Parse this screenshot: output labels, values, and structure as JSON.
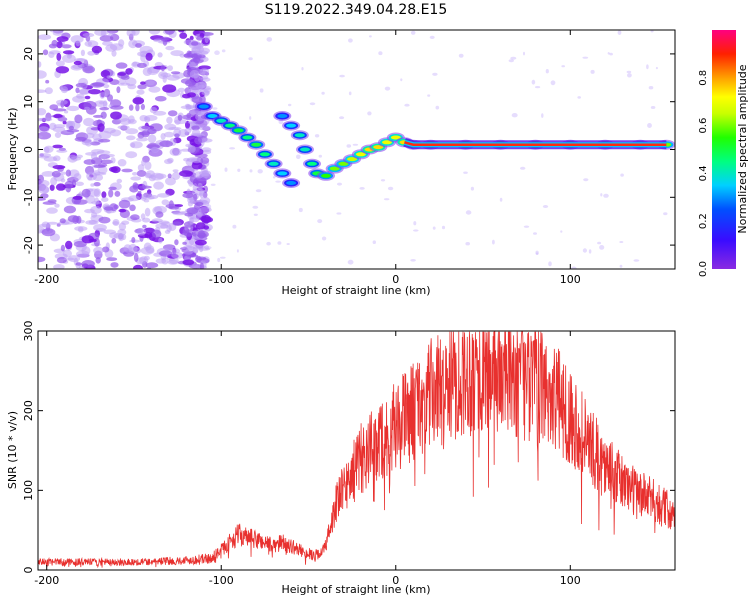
{
  "title": "S119.2022.349.04.28.E15",
  "chart_data": [
    {
      "type": "heatmap",
      "xlabel": "Height of straight line (km)",
      "ylabel": "Frequency (Hz)",
      "xlim": [
        -205,
        160
      ],
      "ylim": [
        -25,
        25
      ],
      "xticks": [
        -200,
        -100,
        0,
        100
      ],
      "yticks": [
        -20,
        -10,
        0,
        10,
        20
      ],
      "colorbar": {
        "label": "Normalized spectral amplitude",
        "range": [
          0,
          1
        ],
        "ticks": [
          "0.0",
          "0.2",
          "0.4",
          "0.6",
          "0.8"
        ],
        "colormap": "rainbow"
      },
      "features": {
        "noise_region_x": [
          -205,
          -108
        ],
        "line_segments": [
          {
            "x": -110,
            "y": 9,
            "amp": 0.3
          },
          {
            "x": -105,
            "y": 7,
            "amp": 0.35
          },
          {
            "x": -100,
            "y": 6,
            "amp": 0.4
          },
          {
            "x": -95,
            "y": 5,
            "amp": 0.45
          },
          {
            "x": -90,
            "y": 4,
            "amp": 0.5
          },
          {
            "x": -85,
            "y": 2.5,
            "amp": 0.45
          },
          {
            "x": -80,
            "y": 1,
            "amp": 0.5
          },
          {
            "x": -75,
            "y": -1,
            "amp": 0.45
          },
          {
            "x": -70,
            "y": -3,
            "amp": 0.4
          },
          {
            "x": -65,
            "y": -5,
            "amp": 0.35
          },
          {
            "x": -60,
            "y": -7,
            "amp": 0.3
          },
          {
            "x": -65,
            "y": 7,
            "amp": 0.3
          },
          {
            "x": -60,
            "y": 5,
            "amp": 0.35
          },
          {
            "x": -55,
            "y": 3,
            "amp": 0.4
          },
          {
            "x": -52,
            "y": 0,
            "amp": 0.4
          },
          {
            "x": -48,
            "y": -3,
            "amp": 0.45
          },
          {
            "x": -45,
            "y": -5,
            "amp": 0.5
          },
          {
            "x": -40,
            "y": -5.5,
            "amp": 0.55
          },
          {
            "x": -35,
            "y": -4,
            "amp": 0.6
          },
          {
            "x": -30,
            "y": -3,
            "amp": 0.6
          },
          {
            "x": -25,
            "y": -2,
            "amp": 0.65
          },
          {
            "x": -20,
            "y": -1,
            "amp": 0.7
          },
          {
            "x": -15,
            "y": 0,
            "amp": 0.75
          },
          {
            "x": -10,
            "y": 0.5,
            "amp": 0.75
          },
          {
            "x": -5,
            "y": 1.5,
            "amp": 0.7
          },
          {
            "x": 0,
            "y": 2.5,
            "amp": 0.7
          },
          {
            "x": 5,
            "y": 1.5,
            "amp": 0.75
          },
          {
            "x": 10,
            "y": 1,
            "amp": 0.85
          },
          {
            "x": 20,
            "y": 1,
            "amp": 0.9
          },
          {
            "x": 40,
            "y": 1,
            "amp": 0.95
          },
          {
            "x": 60,
            "y": 1,
            "amp": 1.0
          },
          {
            "x": 80,
            "y": 1,
            "amp": 0.95
          },
          {
            "x": 100,
            "y": 1,
            "amp": 0.9
          },
          {
            "x": 120,
            "y": 1,
            "amp": 0.85
          },
          {
            "x": 140,
            "y": 1,
            "amp": 0.75
          },
          {
            "x": 155,
            "y": 1,
            "amp": 0.6
          }
        ]
      }
    },
    {
      "type": "line",
      "xlabel": "Height of straight line (km)",
      "ylabel": "SNR (10 * v/v)",
      "xlim": [
        -205,
        160
      ],
      "ylim": [
        0,
        300
      ],
      "xticks": [
        -200,
        -100,
        0,
        100
      ],
      "yticks": [
        0,
        100,
        200,
        300
      ],
      "color": "#e8302e",
      "envelope": {
        "x": [
          -205,
          -150,
          -120,
          -105,
          -100,
          -95,
          -90,
          -85,
          -80,
          -75,
          -70,
          -65,
          -60,
          -55,
          -50,
          -45,
          -40,
          -35,
          -30,
          -25,
          -20,
          -10,
          0,
          10,
          20,
          30,
          40,
          50,
          60,
          70,
          80,
          90,
          100,
          110,
          120,
          130,
          140,
          150,
          160
        ],
        "y": [
          10,
          10,
          12,
          15,
          25,
          35,
          45,
          40,
          38,
          35,
          30,
          35,
          30,
          25,
          20,
          18,
          30,
          80,
          100,
          120,
          140,
          160,
          180,
          200,
          220,
          235,
          245,
          250,
          245,
          240,
          235,
          220,
          195,
          160,
          130,
          110,
          95,
          85,
          70
        ]
      }
    }
  ]
}
